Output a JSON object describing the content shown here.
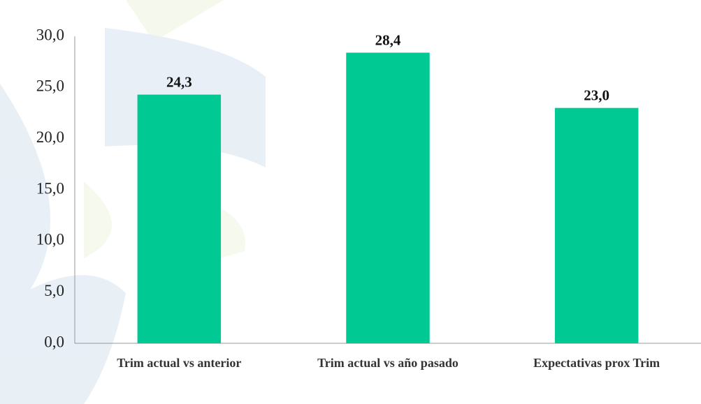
{
  "chart_data": {
    "type": "bar",
    "categories": [
      "Trim actual vs anterior",
      "Trim actual vs año pasado",
      "Expectativas prox Trim"
    ],
    "values": [
      24.3,
      28.4,
      23.0
    ],
    "value_labels": [
      "24,3",
      "28,4",
      "23,0"
    ],
    "color": "#00c994",
    "ylim": [
      0,
      30
    ],
    "yticks": [
      {
        "value": 0,
        "label": "0,0"
      },
      {
        "value": 5,
        "label": "5,0"
      },
      {
        "value": 10,
        "label": "10,0"
      },
      {
        "value": 15,
        "label": "15,0"
      },
      {
        "value": 20,
        "label": "20,0"
      },
      {
        "value": 25,
        "label": "25,0"
      },
      {
        "value": 30,
        "label": "30,0"
      }
    ],
    "grid": false
  }
}
